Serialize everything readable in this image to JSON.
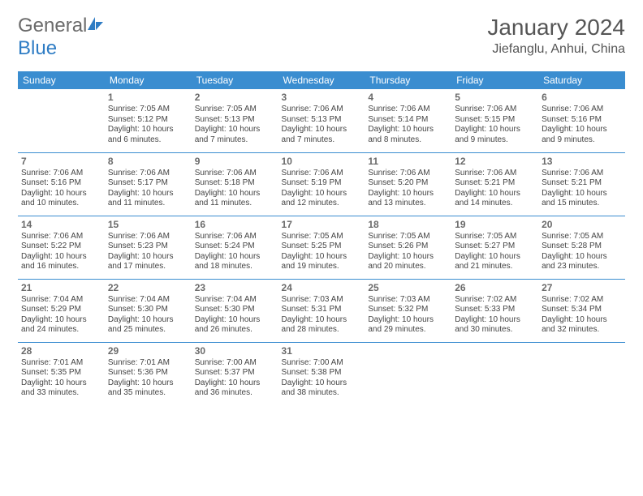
{
  "brand": {
    "text_gray": "General",
    "text_blue": "Blue"
  },
  "title": "January 2024",
  "location": "Jiefanglu, Anhui, China",
  "colors": {
    "header_bg": "#3a8dd0",
    "header_text": "#ffffff",
    "border": "#3a8dd0",
    "logo_gray": "#6b6b6b",
    "logo_blue": "#2e7cc4"
  },
  "day_names": [
    "Sunday",
    "Monday",
    "Tuesday",
    "Wednesday",
    "Thursday",
    "Friday",
    "Saturday"
  ],
  "weeks": [
    [
      null,
      {
        "n": "1",
        "sr": "Sunrise: 7:05 AM",
        "ss": "Sunset: 5:12 PM",
        "d1": "Daylight: 10 hours",
        "d2": "and 6 minutes."
      },
      {
        "n": "2",
        "sr": "Sunrise: 7:05 AM",
        "ss": "Sunset: 5:13 PM",
        "d1": "Daylight: 10 hours",
        "d2": "and 7 minutes."
      },
      {
        "n": "3",
        "sr": "Sunrise: 7:06 AM",
        "ss": "Sunset: 5:13 PM",
        "d1": "Daylight: 10 hours",
        "d2": "and 7 minutes."
      },
      {
        "n": "4",
        "sr": "Sunrise: 7:06 AM",
        "ss": "Sunset: 5:14 PM",
        "d1": "Daylight: 10 hours",
        "d2": "and 8 minutes."
      },
      {
        "n": "5",
        "sr": "Sunrise: 7:06 AM",
        "ss": "Sunset: 5:15 PM",
        "d1": "Daylight: 10 hours",
        "d2": "and 9 minutes."
      },
      {
        "n": "6",
        "sr": "Sunrise: 7:06 AM",
        "ss": "Sunset: 5:16 PM",
        "d1": "Daylight: 10 hours",
        "d2": "and 9 minutes."
      }
    ],
    [
      {
        "n": "7",
        "sr": "Sunrise: 7:06 AM",
        "ss": "Sunset: 5:16 PM",
        "d1": "Daylight: 10 hours",
        "d2": "and 10 minutes."
      },
      {
        "n": "8",
        "sr": "Sunrise: 7:06 AM",
        "ss": "Sunset: 5:17 PM",
        "d1": "Daylight: 10 hours",
        "d2": "and 11 minutes."
      },
      {
        "n": "9",
        "sr": "Sunrise: 7:06 AM",
        "ss": "Sunset: 5:18 PM",
        "d1": "Daylight: 10 hours",
        "d2": "and 11 minutes."
      },
      {
        "n": "10",
        "sr": "Sunrise: 7:06 AM",
        "ss": "Sunset: 5:19 PM",
        "d1": "Daylight: 10 hours",
        "d2": "and 12 minutes."
      },
      {
        "n": "11",
        "sr": "Sunrise: 7:06 AM",
        "ss": "Sunset: 5:20 PM",
        "d1": "Daylight: 10 hours",
        "d2": "and 13 minutes."
      },
      {
        "n": "12",
        "sr": "Sunrise: 7:06 AM",
        "ss": "Sunset: 5:21 PM",
        "d1": "Daylight: 10 hours",
        "d2": "and 14 minutes."
      },
      {
        "n": "13",
        "sr": "Sunrise: 7:06 AM",
        "ss": "Sunset: 5:21 PM",
        "d1": "Daylight: 10 hours",
        "d2": "and 15 minutes."
      }
    ],
    [
      {
        "n": "14",
        "sr": "Sunrise: 7:06 AM",
        "ss": "Sunset: 5:22 PM",
        "d1": "Daylight: 10 hours",
        "d2": "and 16 minutes."
      },
      {
        "n": "15",
        "sr": "Sunrise: 7:06 AM",
        "ss": "Sunset: 5:23 PM",
        "d1": "Daylight: 10 hours",
        "d2": "and 17 minutes."
      },
      {
        "n": "16",
        "sr": "Sunrise: 7:06 AM",
        "ss": "Sunset: 5:24 PM",
        "d1": "Daylight: 10 hours",
        "d2": "and 18 minutes."
      },
      {
        "n": "17",
        "sr": "Sunrise: 7:05 AM",
        "ss": "Sunset: 5:25 PM",
        "d1": "Daylight: 10 hours",
        "d2": "and 19 minutes."
      },
      {
        "n": "18",
        "sr": "Sunrise: 7:05 AM",
        "ss": "Sunset: 5:26 PM",
        "d1": "Daylight: 10 hours",
        "d2": "and 20 minutes."
      },
      {
        "n": "19",
        "sr": "Sunrise: 7:05 AM",
        "ss": "Sunset: 5:27 PM",
        "d1": "Daylight: 10 hours",
        "d2": "and 21 minutes."
      },
      {
        "n": "20",
        "sr": "Sunrise: 7:05 AM",
        "ss": "Sunset: 5:28 PM",
        "d1": "Daylight: 10 hours",
        "d2": "and 23 minutes."
      }
    ],
    [
      {
        "n": "21",
        "sr": "Sunrise: 7:04 AM",
        "ss": "Sunset: 5:29 PM",
        "d1": "Daylight: 10 hours",
        "d2": "and 24 minutes."
      },
      {
        "n": "22",
        "sr": "Sunrise: 7:04 AM",
        "ss": "Sunset: 5:30 PM",
        "d1": "Daylight: 10 hours",
        "d2": "and 25 minutes."
      },
      {
        "n": "23",
        "sr": "Sunrise: 7:04 AM",
        "ss": "Sunset: 5:30 PM",
        "d1": "Daylight: 10 hours",
        "d2": "and 26 minutes."
      },
      {
        "n": "24",
        "sr": "Sunrise: 7:03 AM",
        "ss": "Sunset: 5:31 PM",
        "d1": "Daylight: 10 hours",
        "d2": "and 28 minutes."
      },
      {
        "n": "25",
        "sr": "Sunrise: 7:03 AM",
        "ss": "Sunset: 5:32 PM",
        "d1": "Daylight: 10 hours",
        "d2": "and 29 minutes."
      },
      {
        "n": "26",
        "sr": "Sunrise: 7:02 AM",
        "ss": "Sunset: 5:33 PM",
        "d1": "Daylight: 10 hours",
        "d2": "and 30 minutes."
      },
      {
        "n": "27",
        "sr": "Sunrise: 7:02 AM",
        "ss": "Sunset: 5:34 PM",
        "d1": "Daylight: 10 hours",
        "d2": "and 32 minutes."
      }
    ],
    [
      {
        "n": "28",
        "sr": "Sunrise: 7:01 AM",
        "ss": "Sunset: 5:35 PM",
        "d1": "Daylight: 10 hours",
        "d2": "and 33 minutes."
      },
      {
        "n": "29",
        "sr": "Sunrise: 7:01 AM",
        "ss": "Sunset: 5:36 PM",
        "d1": "Daylight: 10 hours",
        "d2": "and 35 minutes."
      },
      {
        "n": "30",
        "sr": "Sunrise: 7:00 AM",
        "ss": "Sunset: 5:37 PM",
        "d1": "Daylight: 10 hours",
        "d2": "and 36 minutes."
      },
      {
        "n": "31",
        "sr": "Sunrise: 7:00 AM",
        "ss": "Sunset: 5:38 PM",
        "d1": "Daylight: 10 hours",
        "d2": "and 38 minutes."
      },
      null,
      null,
      null
    ]
  ]
}
